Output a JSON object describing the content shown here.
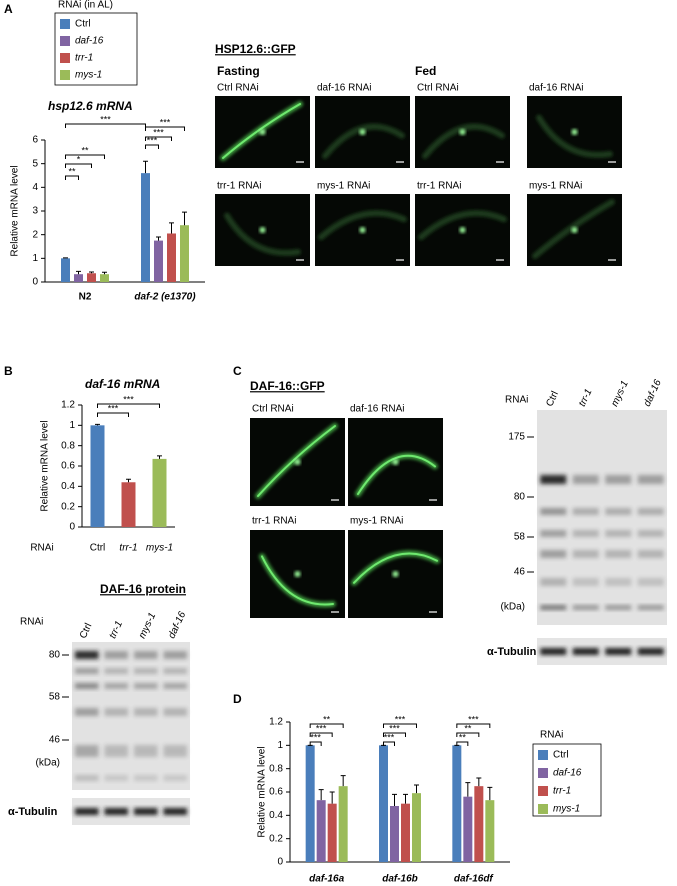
{
  "chart_data": [
    {
      "type": "bar",
      "title": "hsp12.6 mRNA",
      "ylabel": "Relative mRNA level",
      "legend_title": "RNAi (in AL)",
      "categories": [
        "N2",
        "daf-2 (e1370)"
      ],
      "series": [
        {
          "name": "Ctrl",
          "color": "#4a7ebb",
          "values": [
            1,
            4.6
          ],
          "errors": [
            0.02,
            0.5
          ]
        },
        {
          "name": "daf-16",
          "color": "#8064a2",
          "values": [
            0.33,
            1.75
          ],
          "errors": [
            0.12,
            0.15
          ]
        },
        {
          "name": "trr-1",
          "color": "#c0504d",
          "values": [
            0.37,
            2.05
          ],
          "errors": [
            0.05,
            0.45
          ]
        },
        {
          "name": "mys-1",
          "color": "#9bbb59",
          "values": [
            0.33,
            2.4
          ],
          "errors": [
            0.08,
            0.55
          ]
        }
      ],
      "significance": [
        [
          "**",
          "*",
          "**"
        ],
        [
          "***",
          "***",
          "***"
        ]
      ],
      "significance_between_groups": "***",
      "ylim": [
        0,
        6
      ],
      "yticks": [
        0,
        1,
        2,
        3,
        4,
        5,
        6
      ]
    },
    {
      "type": "bar",
      "title": "daf-16 mRNA",
      "ylabel": "Relative mRNA level",
      "xlabel": "RNAi",
      "categories": [
        "Ctrl",
        "trr-1",
        "mys-1"
      ],
      "values": [
        1,
        0.44,
        0.67
      ],
      "errors": [
        0.01,
        0.03,
        0.03
      ],
      "colors": [
        "#4a7ebb",
        "#c0504d",
        "#9bbb59"
      ],
      "significance": [
        "***",
        "***"
      ],
      "ylim": [
        0,
        1.2
      ],
      "yticks": [
        0,
        0.2,
        0.4,
        0.6,
        0.8,
        1,
        1.2
      ]
    },
    {
      "type": "bar",
      "ylabel": "Relative mRNA level",
      "legend_title": "RNAi",
      "categories": [
        "daf-16a",
        "daf-16b",
        "daf-16df"
      ],
      "series": [
        {
          "name": "Ctrl",
          "color": "#4a7ebb",
          "values": [
            1,
            1,
            1
          ],
          "errors": [
            0,
            0,
            0
          ]
        },
        {
          "name": "daf-16",
          "color": "#8064a2",
          "values": [
            0.53,
            0.48,
            0.56
          ],
          "errors": [
            0.09,
            0.1,
            0.12
          ]
        },
        {
          "name": "trr-1",
          "color": "#c0504d",
          "values": [
            0.5,
            0.5,
            0.65
          ],
          "errors": [
            0.1,
            0.08,
            0.07
          ]
        },
        {
          "name": "mys-1",
          "color": "#9bbb59",
          "values": [
            0.65,
            0.59,
            0.53
          ],
          "errors": [
            0.09,
            0.07,
            0.11
          ]
        }
      ],
      "significance": [
        [
          "***",
          "***",
          "**"
        ],
        [
          "***",
          "***",
          "***"
        ],
        [
          "**",
          "**",
          "***"
        ]
      ],
      "ylim": [
        0,
        1.2
      ],
      "yticks": [
        0,
        0.2,
        0.4,
        0.6,
        0.8,
        1,
        1.2
      ]
    }
  ],
  "figure": {
    "panel_labels": [
      "A",
      "B",
      "C",
      "D"
    ],
    "hsp_gfp": {
      "title": "HSP12.6::GFP",
      "conditions": [
        "Fasting",
        "Fed"
      ],
      "captions": [
        [
          "Ctrl RNAi",
          "daf-16 RNAi",
          "trr-1 RNAi",
          "mys-1 RNAi"
        ],
        [
          "Ctrl RNAi",
          "daf-16 RNAi",
          "trr-1 RNAi",
          "mys-1 RNAi"
        ]
      ]
    },
    "daf16_gfp": {
      "title": "DAF-16::GFP",
      "captions": [
        "Ctrl RNAi",
        "daf-16 RNAi",
        "trr-1 RNAi",
        "mys-1 RNAi"
      ]
    },
    "blot_b": {
      "title": "DAF-16 protein",
      "row_label": "RNAi",
      "lanes": [
        "Ctrl",
        "trr-1",
        "mys-1",
        "daf-16"
      ],
      "markers": [
        "80",
        "58",
        "46"
      ],
      "unit": "(kDa)",
      "loading": "α-Tubulin"
    },
    "blot_c": {
      "row_label": "RNAi",
      "lanes": [
        "Ctrl",
        "trr-1",
        "mys-1",
        "daf-16"
      ],
      "markers": [
        "175",
        "80",
        "58",
        "46"
      ],
      "unit": "(kDa)",
      "loading": "α-Tubulin"
    }
  }
}
